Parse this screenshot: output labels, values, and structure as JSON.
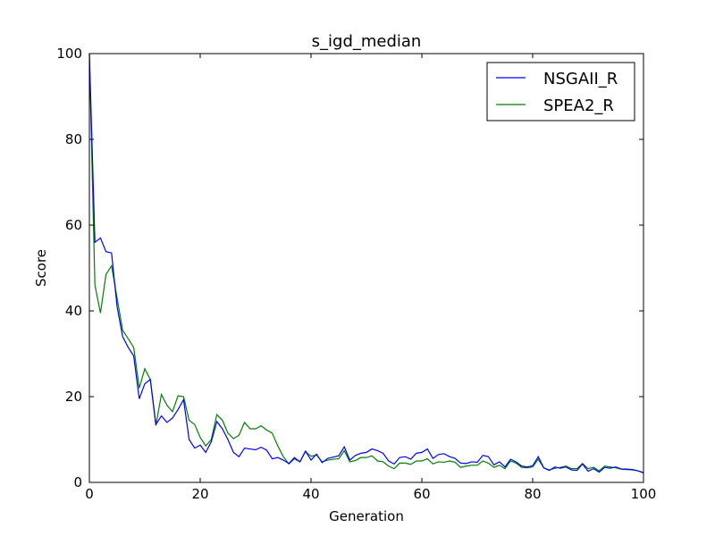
{
  "chart_data": {
    "type": "line",
    "title": "s_igd_median",
    "xlabel": "Generation",
    "ylabel": "Score",
    "xlim": [
      0,
      100
    ],
    "ylim": [
      0,
      100
    ],
    "xticks": [
      0,
      20,
      40,
      60,
      80,
      100
    ],
    "yticks": [
      0,
      20,
      40,
      60,
      80,
      100
    ],
    "grid": false,
    "legend_position": "top-right",
    "x": [
      0,
      1,
      2,
      3,
      4,
      5,
      6,
      7,
      8,
      9,
      10,
      11,
      12,
      13,
      14,
      15,
      16,
      17,
      18,
      19,
      20,
      21,
      22,
      23,
      24,
      25,
      26,
      27,
      28,
      29,
      30,
      31,
      32,
      33,
      34,
      35,
      36,
      37,
      38,
      39,
      40,
      41,
      42,
      43,
      44,
      45,
      46,
      47,
      48,
      49,
      50,
      51,
      52,
      53,
      54,
      55,
      56,
      57,
      58,
      59,
      60,
      61,
      62,
      63,
      64,
      65,
      66,
      67,
      68,
      69,
      70,
      71,
      72,
      73,
      74,
      75,
      76,
      77,
      78,
      79,
      80,
      81,
      82,
      83,
      84,
      85,
      86,
      87,
      88,
      89,
      90,
      91,
      92,
      93,
      94,
      95,
      96,
      97,
      98,
      99,
      100
    ],
    "series": [
      {
        "name": "NSGAII_R",
        "color": "#0000ff",
        "values": [
          100,
          56,
          57,
          53.8,
          53.5,
          41,
          34,
          31.5,
          29.5,
          19.5,
          23,
          24,
          13.5,
          15.5,
          14,
          15,
          17,
          19.3,
          10,
          8,
          8.7,
          7,
          9.5,
          14.2,
          12.5,
          10,
          7,
          6,
          8,
          7.8,
          7.6,
          8.2,
          7.5,
          5.5,
          5.8,
          5.2,
          4.4,
          5.8,
          4.8,
          7.3,
          5.2,
          6.6,
          4.6,
          5.6,
          5.9,
          6.2,
          8.3,
          5.2,
          6.3,
          6.8,
          7,
          7.8,
          7.4,
          6.8,
          5,
          4.3,
          5.8,
          6,
          5.4,
          6.8,
          7,
          7.8,
          5.6,
          6.5,
          6.7,
          6,
          5.6,
          4.5,
          4.4,
          4.8,
          4.7,
          6.3,
          6,
          4.1,
          4.8,
          3.6,
          5.4,
          4.8,
          3.8,
          3.6,
          3.9,
          6,
          3.4,
          2.8,
          3.6,
          3.3,
          3.6,
          2.9,
          2.8,
          4.3,
          2.6,
          3.2,
          2.4,
          3.5,
          3.3,
          3.6,
          3.1,
          3.1,
          3,
          2.7,
          2.3
        ]
      },
      {
        "name": "SPEA2_R",
        "color": "#008000",
        "values": [
          100,
          46,
          39.5,
          48.5,
          50.5,
          43,
          35.5,
          33.5,
          31.5,
          22,
          26.5,
          24,
          13.3,
          20.5,
          18,
          16.5,
          20.2,
          20,
          14.5,
          13.5,
          10.5,
          8.5,
          10,
          15.8,
          14.5,
          11.5,
          10.2,
          11,
          14,
          12.5,
          12.5,
          13.2,
          12.2,
          11.5,
          8.5,
          6,
          4.3,
          5.5,
          4.8,
          7.2,
          6.1,
          6.4,
          4.8,
          5.2,
          5.4,
          5.5,
          7.4,
          4.8,
          5.1,
          5.8,
          5.8,
          6.2,
          5,
          4.8,
          3.8,
          3.2,
          4.5,
          4.5,
          4.2,
          5,
          5,
          5.5,
          4.3,
          4.8,
          4.7,
          5,
          4.7,
          3.5,
          3.8,
          4,
          4,
          5,
          4.5,
          3.5,
          4,
          3.2,
          5,
          4.5,
          3.5,
          3.4,
          3.6,
          5.4,
          3.4,
          2.9,
          3.3,
          3.5,
          3.8,
          3.2,
          3.2,
          4.4,
          3.2,
          3.5,
          2.7,
          3.8,
          3.6,
          3.4,
          3.1,
          3,
          2.9,
          2.7,
          2.2
        ]
      }
    ]
  }
}
